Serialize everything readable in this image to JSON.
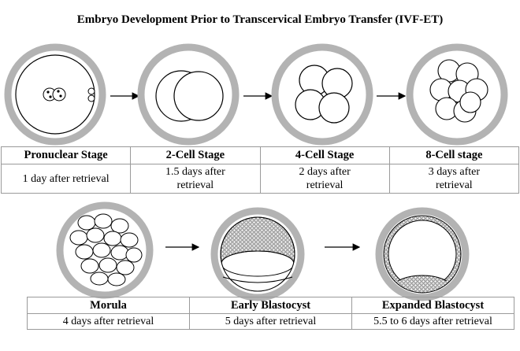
{
  "title": "Embryo Development Prior to Transcervical Embryo Transfer (IVF-ET)",
  "top_stages": [
    {
      "name": "Pronuclear Stage",
      "description": "1 day after retrieval"
    },
    {
      "name": "2-Cell Stage",
      "description": "1.5 days after retrieval"
    },
    {
      "name": "4-Cell Stage",
      "description": "2 days after retrieval"
    },
    {
      "name": "8-Cell stage",
      "description": "3 days after retrieval"
    }
  ],
  "bottom_stages": [
    {
      "name": "Morula",
      "description": "4 days after retrieval"
    },
    {
      "name": "Early Blastocyst",
      "description": "5 days after retrieval"
    },
    {
      "name": "Expanded Blastocyst",
      "description": "5.5 to 6 days after retrieval"
    }
  ],
  "colors": {
    "zona": "#b3b3b3",
    "outline": "#000000",
    "table_border": "#9a9a9a"
  }
}
